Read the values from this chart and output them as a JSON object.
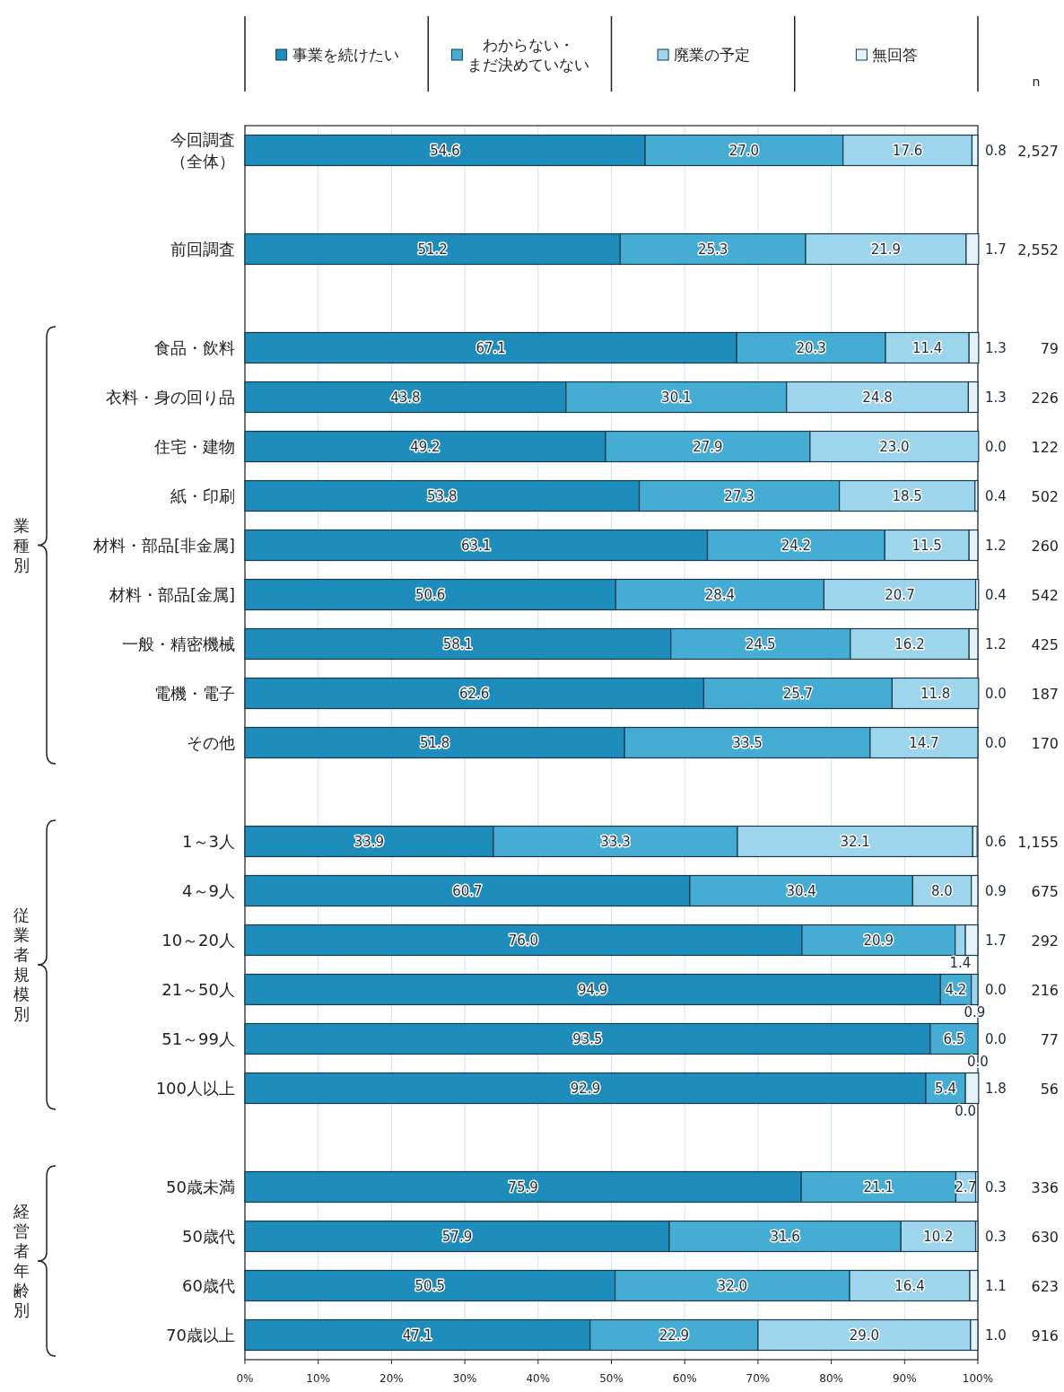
{
  "chart_data": {
    "type": "bar",
    "orientation": "horizontal",
    "stacked": true,
    "categories": [
      "今回調査（全体）",
      null,
      "前回調査",
      null,
      "食品・飲料",
      "衣料・身の回り品",
      "住宅・建物",
      "紙・印刷",
      "材料・部品[非金属]",
      "材料・部品[金属]",
      "一般・精密機械",
      "電機・電子",
      "その他",
      null,
      "1～3人",
      "4～9人",
      "10～20人",
      "21～50人",
      "51～99人",
      "100人以上",
      null,
      "50歳未満",
      "50歳代",
      "60歳代",
      "70歳以上"
    ],
    "y2_categories": [
      "2,527",
      null,
      "2,552",
      null,
      "79",
      "226",
      "122",
      "502",
      "260",
      "542",
      "425",
      "187",
      "170",
      null,
      "1,155",
      "675",
      "292",
      "216",
      "77",
      "56",
      null,
      "336",
      "630",
      "623",
      "916"
    ],
    "y2label": "n",
    "series": [
      {
        "name": "事業を続けたい",
        "color": "#1f8dbb",
        "values": [
          54.6,
          null,
          51.2,
          null,
          67.1,
          43.8,
          49.2,
          53.8,
          63.1,
          50.6,
          58.1,
          62.6,
          51.8,
          null,
          33.9,
          60.7,
          76.0,
          94.9,
          93.5,
          92.9,
          null,
          75.9,
          57.9,
          50.5,
          47.1
        ],
        "value_labels": [
          "54.6",
          null,
          "51.2",
          null,
          "67.1",
          "43.8",
          "49.2",
          "53.8",
          "63.1",
          "50.6",
          "58.1",
          "62.6",
          "51.8",
          null,
          "33.9",
          "60.7",
          "76.0",
          "94.9",
          "93.5",
          "92.9",
          null,
          "75.9",
          "57.9",
          "50.5",
          "47.1"
        ]
      },
      {
        "name": "わからない・まだ決めていない",
        "color": "#45acd4",
        "values": [
          27.0,
          null,
          25.3,
          null,
          20.3,
          30.1,
          27.9,
          27.3,
          24.2,
          28.4,
          24.5,
          25.7,
          33.5,
          null,
          33.3,
          30.4,
          20.9,
          4.2,
          6.5,
          5.4,
          null,
          21.1,
          31.6,
          32.0,
          22.9
        ],
        "value_labels": [
          "27.0",
          null,
          "25.3",
          null,
          "20.3",
          "30.1",
          "27.9",
          "27.3",
          "24.2",
          "28.4",
          "24.5",
          "25.7",
          "33.5",
          null,
          "33.3",
          "30.4",
          "20.9",
          "4.2",
          "6.5",
          "5.4",
          null,
          "21.1",
          "31.6",
          "32.0",
          "22.9"
        ]
      },
      {
        "name": "廃業の予定",
        "color": "#9dd6ec",
        "values": [
          17.6,
          null,
          21.9,
          null,
          11.4,
          24.8,
          23.0,
          18.5,
          11.5,
          20.7,
          16.2,
          11.8,
          14.7,
          null,
          32.1,
          8.0,
          1.4,
          0.9,
          0.0,
          0.0,
          null,
          2.7,
          10.2,
          16.4,
          29.0
        ],
        "value_labels": [
          "17.6",
          null,
          "21.9",
          null,
          "11.4",
          "24.8",
          "23.0",
          "18.5",
          "11.5",
          "20.7",
          "16.2",
          "11.8",
          "14.7",
          null,
          "32.1",
          "8.0",
          "1.4",
          "0.9",
          "0.0",
          "0.0",
          null,
          "2.7",
          "10.2",
          "16.4",
          "29.0"
        ]
      },
      {
        "name": "無回答",
        "color": "#e4f3f9",
        "values": [
          0.8,
          null,
          1.7,
          null,
          1.3,
          1.3,
          0.0,
          0.4,
          1.2,
          0.4,
          1.2,
          0.0,
          0.0,
          null,
          0.6,
          0.9,
          1.7,
          0.0,
          0.0,
          1.8,
          null,
          0.3,
          0.3,
          1.1,
          1.0
        ],
        "value_labels": [
          "0.8",
          null,
          "1.7",
          null,
          "1.3",
          "1.3",
          "0.0",
          "0.4",
          "1.2",
          "0.4",
          "1.2",
          "0.0",
          "0.0",
          null,
          "0.6",
          "0.9",
          "1.7",
          "0.0",
          "0.0",
          "1.8",
          null,
          "0.3",
          "0.3",
          "1.1",
          "1.0"
        ]
      }
    ],
    "xlim": [
      0,
      100
    ],
    "xticks": [
      {
        "value": 0,
        "label": "0%"
      },
      {
        "value": 10,
        "label": "10%"
      },
      {
        "value": 20,
        "label": "20%"
      },
      {
        "value": 30,
        "label": "30%"
      },
      {
        "value": 40,
        "label": "40%"
      },
      {
        "value": 50,
        "label": "50%"
      },
      {
        "value": 60,
        "label": "60%"
      },
      {
        "value": 70,
        "label": "70%"
      },
      {
        "value": 80,
        "label": "80%"
      },
      {
        "value": 90,
        "label": "90%"
      },
      {
        "value": 100,
        "label": "100%"
      }
    ],
    "grid": "x",
    "legend": "top",
    "annotations": [
      "業種別",
      "従業者規模別",
      "経営者年齢別"
    ]
  }
}
